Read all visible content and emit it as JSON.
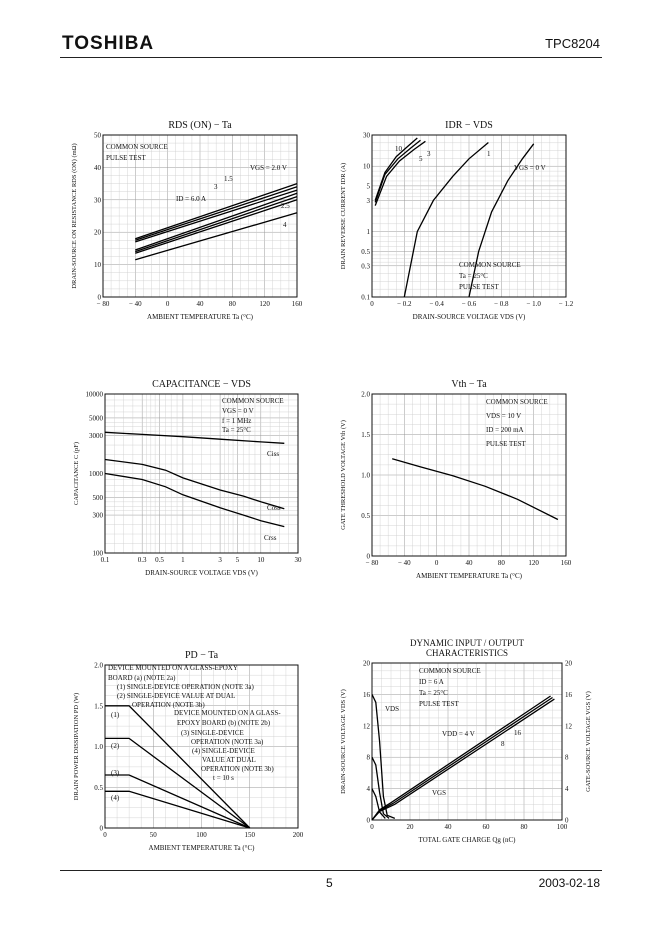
{
  "header": {
    "logo": "TOSHIBA",
    "part_number": "TPC8204"
  },
  "footer": {
    "page": "5",
    "date": "2003-02-18"
  },
  "chart_data": [
    {
      "id": "rds",
      "type": "line",
      "title": "RDS (ON) − Ta",
      "xlabel": "AMBIENT TEMPERATURE   Ta   (°C)",
      "ylabel": "DRAIN-SOURCE ON RESISTANCE  RDS (ON)  (mΩ)",
      "xscale": "linear",
      "yscale": "linear",
      "xlim": [
        -80,
        160
      ],
      "ylim": [
        0,
        50
      ],
      "xticks": [
        -80,
        -40,
        0,
        40,
        80,
        120,
        160
      ],
      "yticks": [
        0,
        10,
        20,
        30,
        40,
        50
      ],
      "annotations": [
        "COMMON SOURCE",
        "PULSE TEST",
        "VGS = 2.0 V",
        "ID = 6.0 A",
        "1.5",
        "3",
        "2.5",
        "4"
      ],
      "series": [
        {
          "name": "VGS=2.0V a",
          "x": [
            -40,
            160
          ],
          "y": [
            18,
            35
          ]
        },
        {
          "name": "VGS=2.0V b",
          "x": [
            -40,
            160
          ],
          "y": [
            17.5,
            34
          ]
        },
        {
          "name": "VGS=2.0V c",
          "x": [
            -40,
            160
          ],
          "y": [
            17,
            33
          ]
        },
        {
          "name": "VGS=2.5V a",
          "x": [
            -40,
            160
          ],
          "y": [
            14.5,
            32
          ]
        },
        {
          "name": "VGS=2.5V b",
          "x": [
            -40,
            160
          ],
          "y": [
            14,
            31
          ]
        },
        {
          "name": "VGS=2.5V c",
          "x": [
            -40,
            160
          ],
          "y": [
            13.5,
            30
          ]
        },
        {
          "name": "VGS=4V",
          "x": [
            -40,
            160
          ],
          "y": [
            11.5,
            26
          ]
        }
      ]
    },
    {
      "id": "idr",
      "type": "line",
      "title": "IDR − VDS",
      "xlabel": "DRAIN-SOURCE VOLTAGE   VDS   (V)",
      "ylabel": "DRAIN REVERSE CURRENT   IDR   (A)",
      "xscale": "linear",
      "yscale": "log",
      "xlim": [
        0,
        -1.2
      ],
      "ylim": [
        0.1,
        30
      ],
      "xticks": [
        0,
        -0.2,
        -0.4,
        -0.6,
        -0.8,
        -1.0,
        -1.2
      ],
      "xticklabels": [
        "0",
        "− 0.2",
        "− 0.4",
        "− 0.6",
        "− 0.8",
        "− 1.0",
        "− 1.2"
      ],
      "yticks": [
        0.1,
        0.3,
        0.5,
        1,
        3,
        5,
        10,
        30
      ],
      "yticklabels": [
        "0.1",
        "0.3",
        "0.5",
        "1",
        "3",
        "5",
        "10",
        "30"
      ],
      "annotations": [
        "10",
        "5",
        "3",
        "1",
        "VGS = 0 V",
        "COMMON SOURCE",
        "Ta = 25°C",
        "PULSE TEST"
      ],
      "series": [
        {
          "name": "VGS=10V",
          "x": [
            -0.02,
            -0.08,
            -0.15,
            -0.22,
            -0.28
          ],
          "y": [
            3,
            8,
            14,
            20,
            27
          ]
        },
        {
          "name": "VGS=5V",
          "x": [
            -0.02,
            -0.08,
            -0.16,
            -0.24,
            -0.3
          ],
          "y": [
            2.8,
            7.5,
            13,
            19,
            25
          ]
        },
        {
          "name": "VGS=3V",
          "x": [
            -0.02,
            -0.09,
            -0.17,
            -0.26,
            -0.33
          ],
          "y": [
            2.5,
            7,
            12,
            18,
            24
          ]
        },
        {
          "name": "VGS=1V",
          "x": [
            -0.2,
            -0.28,
            -0.38,
            -0.5,
            -0.6,
            -0.72
          ],
          "y": [
            0.1,
            1,
            3,
            7,
            13,
            23
          ]
        },
        {
          "name": "VGS=0V",
          "x": [
            -0.6,
            -0.66,
            -0.74,
            -0.84,
            -0.93,
            -1.0
          ],
          "y": [
            0.1,
            0.5,
            2,
            6,
            13,
            22
          ]
        }
      ]
    },
    {
      "id": "cap",
      "type": "line",
      "title": "CAPACITANCE − VDS",
      "xlabel": "DRAIN-SOURCE VOLTAGE   VDS   (V)",
      "ylabel": "CAPACITANCE   C   (pF)",
      "xscale": "log",
      "yscale": "log",
      "xlim": [
        0.1,
        30
      ],
      "ylim": [
        100,
        10000
      ],
      "xticks": [
        0.1,
        0.3,
        0.5,
        1,
        3,
        5,
        10,
        30
      ],
      "xticklabels": [
        "0.1",
        "0.3",
        "0.5",
        "1",
        "3",
        "5",
        "10",
        "30"
      ],
      "yticks": [
        100,
        300,
        500,
        1000,
        3000,
        5000,
        10000
      ],
      "yticklabels": [
        "100",
        "300",
        "500",
        "1000",
        "3000",
        "5000",
        "10000"
      ],
      "annotations": [
        "COMMON SOURCE",
        "VGS = 0 V",
        "f = 1 MHz",
        "Ta = 25°C",
        "Ciss",
        "Coss",
        "Crss"
      ],
      "series": [
        {
          "name": "Ciss",
          "x": [
            0.1,
            0.3,
            1,
            3,
            10,
            20
          ],
          "y": [
            3300,
            3100,
            2900,
            2700,
            2500,
            2400
          ]
        },
        {
          "name": "Coss",
          "x": [
            0.1,
            0.3,
            0.6,
            1,
            3,
            6,
            10,
            20
          ],
          "y": [
            1500,
            1300,
            1100,
            880,
            620,
            520,
            440,
            360
          ]
        },
        {
          "name": "Crss",
          "x": [
            0.1,
            0.3,
            0.6,
            1,
            3,
            6,
            10,
            20
          ],
          "y": [
            1000,
            840,
            680,
            540,
            370,
            300,
            255,
            215
          ]
        }
      ]
    },
    {
      "id": "vth",
      "type": "line",
      "title": "Vth − Ta",
      "xlabel": "AMBIENT TEMPERATURE   Ta   (°C)",
      "ylabel": "GATE THRESHOLD VOLTAGE   Vth   (V)",
      "xscale": "linear",
      "yscale": "linear",
      "xlim": [
        -80,
        160
      ],
      "ylim": [
        0,
        2.0
      ],
      "xticks": [
        -80,
        -40,
        0,
        40,
        80,
        120,
        160
      ],
      "yticks": [
        0,
        0.5,
        1.0,
        1.5,
        2.0
      ],
      "yticklabels": [
        "0",
        "0.5",
        "1.0",
        "1.5",
        "2.0"
      ],
      "annotations": [
        "COMMON SOURCE",
        "VDS = 10 V",
        "ID = 200 mA",
        "PULSE TEST"
      ],
      "series": [
        {
          "name": "Vth",
          "x": [
            -55,
            -20,
            20,
            60,
            100,
            150
          ],
          "y": [
            1.2,
            1.1,
            0.99,
            0.86,
            0.7,
            0.45
          ]
        }
      ]
    },
    {
      "id": "pd",
      "type": "line",
      "title": "PD − Ta",
      "xlabel": "AMBIENT TEMPERATURE   Ta   (°C)",
      "ylabel": "DRAIN POWER DISSIPATION   PD   (W)",
      "xscale": "linear",
      "yscale": "linear",
      "xlim": [
        0,
        200
      ],
      "ylim": [
        0,
        2.0
      ],
      "xticks": [
        0,
        50,
        100,
        150,
        200
      ],
      "yticks": [
        0,
        0.5,
        1.0,
        1.5,
        2.0
      ],
      "yticklabels": [
        "0",
        "0.5",
        "1.0",
        "1.5",
        "2.0"
      ],
      "annotations": [
        "DEVICE MOUNTED ON A GLASS-EPOXY",
        "BOARD (a) (NOTE 2a)",
        "(1)  SINGLE-DEVICE OPERATION (NOTE 3a)",
        "(2)  SINGLE-DEVICE VALUE AT DUAL",
        "OPERATION (NOTE 3b)",
        "DEVICE MOUNTED ON A GLASS-",
        "EPOXY BOARD (b) (NOTE 2b)",
        "(3) SINGLE-DEVICE",
        "OPERATION (NOTE 3a)",
        "(4) SINGLE-DEVICE",
        "VALUE AT DUAL",
        "OPERATION (NOTE 3b)",
        "t = 10 s",
        "(1)",
        "(2)",
        "(3)",
        "(4)"
      ],
      "series": [
        {
          "name": "(1)",
          "x": [
            0,
            25,
            150
          ],
          "y": [
            1.5,
            1.5,
            0
          ]
        },
        {
          "name": "(2)",
          "x": [
            0,
            25,
            150
          ],
          "y": [
            1.1,
            1.1,
            0
          ]
        },
        {
          "name": "(3)",
          "x": [
            0,
            25,
            150
          ],
          "y": [
            0.65,
            0.65,
            0
          ]
        },
        {
          "name": "(4)",
          "x": [
            0,
            25,
            150
          ],
          "y": [
            0.45,
            0.45,
            0
          ]
        }
      ]
    },
    {
      "id": "gate",
      "type": "line",
      "title": "DYNAMIC INPUT / OUTPUT",
      "subtitle": "CHARACTERISTICS",
      "xlabel": "TOTAL GATE CHARGE   Qg   (nC)",
      "ylabel": "DRAIN-SOURCE VOLTAGE   VDS   (V)",
      "y2label": "GATE-SOURCE VOLTAGE   VGS   (V)",
      "xscale": "linear",
      "yscale": "linear",
      "xlim": [
        0,
        100
      ],
      "ylim": [
        0,
        20
      ],
      "y2lim": [
        0,
        20
      ],
      "xticks": [
        0,
        20,
        40,
        60,
        80,
        100
      ],
      "yticks": [
        0,
        4,
        8,
        12,
        16,
        20
      ],
      "annotations": [
        "COMMON SOURCE",
        "ID = 6 A",
        "Ta = 25°C",
        "PULSE TEST",
        "VDS",
        "VGS",
        "VDD = 4 V",
        "8",
        "16"
      ],
      "series": [
        {
          "name": "VDS VDD=16V",
          "x": [
            0,
            2,
            4,
            6,
            8,
            12
          ],
          "y": [
            16,
            15,
            10,
            3,
            0.6,
            0.2
          ]
        },
        {
          "name": "VDS VDD=8V",
          "x": [
            0,
            2,
            4,
            6,
            9
          ],
          "y": [
            8,
            7,
            3.5,
            0.8,
            0.2
          ]
        },
        {
          "name": "VDS VDD=4V",
          "x": [
            0,
            2,
            4,
            7
          ],
          "y": [
            4,
            3,
            1,
            0.2
          ]
        },
        {
          "name": "VGS a",
          "x": [
            0,
            4,
            10,
            94
          ],
          "y": [
            0,
            1.3,
            2.2,
            15.8
          ]
        },
        {
          "name": "VGS b",
          "x": [
            0,
            4,
            11,
            95
          ],
          "y": [
            0,
            1.2,
            2.1,
            15.6
          ]
        },
        {
          "name": "VGS c",
          "x": [
            0,
            4,
            12,
            96
          ],
          "y": [
            0,
            1.1,
            2.0,
            15.4
          ]
        }
      ]
    }
  ]
}
